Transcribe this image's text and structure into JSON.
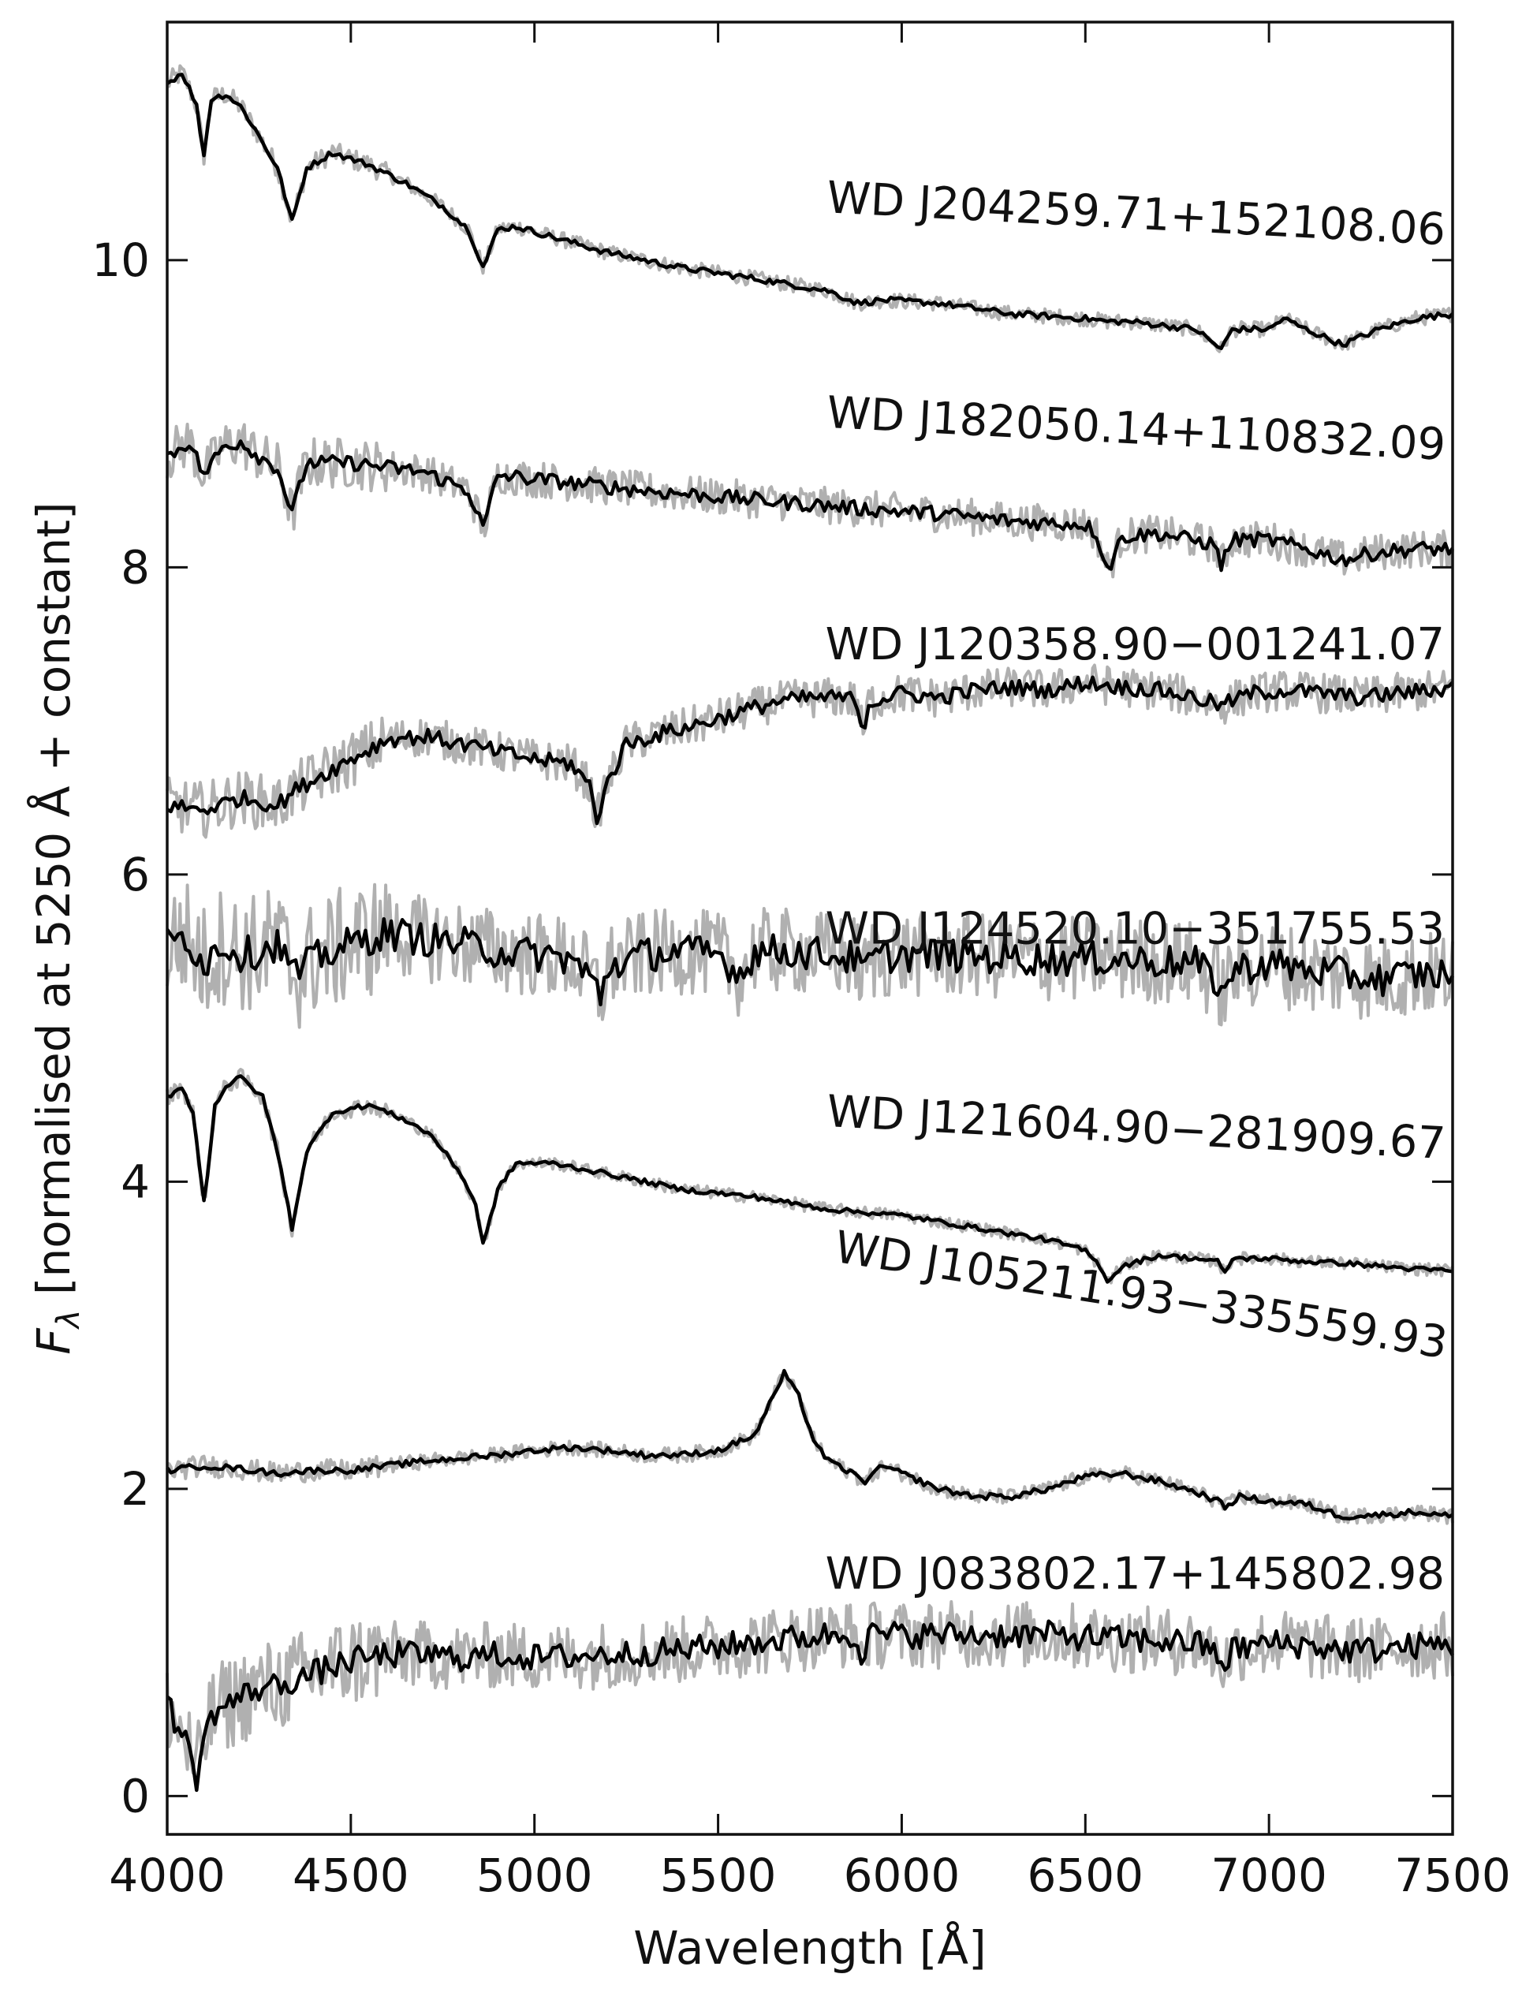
{
  "chart_data": {
    "type": "line",
    "title": "",
    "xlabel": "Wavelength [Å]",
    "ylabel_symbol": "F",
    "ylabel_subscript": "λ",
    "ylabel_rest": " [normalised at 5250 Å + constant]",
    "xlim": [
      4000,
      7500
    ],
    "ylim": [
      -0.25,
      11.55
    ],
    "xticks": [
      4000,
      4500,
      5000,
      5500,
      6000,
      6500,
      7000,
      7500
    ],
    "yticks": [
      0,
      2,
      4,
      6,
      8,
      10
    ],
    "grid": false,
    "colors": {
      "observed": "#b0b0b0",
      "smoothed": "#000000"
    },
    "series": [
      {
        "name": "WD J204259.71+152108.06",
        "label_rotation_deg": 3,
        "noise": 0.05,
        "x": [
          4000,
          4040,
          4060,
          4080,
          4100,
          4120,
          4160,
          4200,
          4240,
          4300,
          4340,
          4380,
          4450,
          4550,
          4650,
          4750,
          4820,
          4861,
          4900,
          4950,
          5050,
          5200,
          5400,
          5600,
          5800,
          5880,
          5950,
          6100,
          6300,
          6500,
          6562,
          6620,
          6800,
          6870,
          6900,
          7000,
          7040,
          7100,
          7200,
          7300,
          7400,
          7500
        ],
        "y": [
          11.15,
          11.22,
          11.12,
          11.0,
          10.68,
          11.05,
          11.08,
          11.0,
          10.85,
          10.6,
          10.25,
          10.6,
          10.7,
          10.62,
          10.5,
          10.35,
          10.2,
          9.95,
          10.2,
          10.22,
          10.15,
          10.05,
          9.95,
          9.88,
          9.8,
          9.72,
          9.74,
          9.72,
          9.65,
          9.62,
          9.6,
          9.6,
          9.55,
          9.42,
          9.55,
          9.55,
          9.62,
          9.55,
          9.45,
          9.55,
          9.62,
          9.65
        ]
      },
      {
        "name": "WD J182050.14+110832.09",
        "label_rotation_deg": 3,
        "noise": 0.12,
        "x": [
          4000,
          4060,
          4100,
          4150,
          4200,
          4250,
          4300,
          4340,
          4380,
          4500,
          4700,
          4820,
          4861,
          4900,
          5100,
          5300,
          5500,
          5700,
          5900,
          6100,
          6300,
          6500,
          6530,
          6562,
          6600,
          6700,
          6850,
          6870,
          6900,
          7000,
          7100,
          7200,
          7300,
          7400,
          7500
        ],
        "y": [
          8.72,
          8.82,
          8.6,
          8.78,
          8.82,
          8.72,
          8.65,
          8.35,
          8.68,
          8.68,
          8.62,
          8.5,
          8.25,
          8.6,
          8.55,
          8.5,
          8.46,
          8.42,
          8.38,
          8.35,
          8.3,
          8.28,
          8.22,
          7.98,
          8.2,
          8.22,
          8.15,
          8.02,
          8.18,
          8.18,
          8.12,
          8.05,
          8.1,
          8.12,
          8.12
        ]
      },
      {
        "name": "WD J120358.90−001241.07",
        "label_rotation_deg": 0,
        "noise": 0.13,
        "x": [
          4000,
          4100,
          4200,
          4300,
          4350,
          4400,
          4500,
          4600,
          4700,
          4800,
          4900,
          5000,
          5100,
          5150,
          5170,
          5190,
          5250,
          5350,
          5450,
          5550,
          5650,
          5750,
          5850,
          5880,
          5895,
          5910,
          6000,
          6100,
          6200,
          6300,
          6400,
          6500,
          6600,
          6700,
          6800,
          6870,
          6950,
          7050,
          7150,
          7250,
          7350,
          7450,
          7500
        ],
        "y": [
          6.45,
          6.42,
          6.5,
          6.45,
          6.55,
          6.62,
          6.75,
          6.88,
          6.9,
          6.85,
          6.8,
          6.75,
          6.72,
          6.58,
          6.35,
          6.55,
          6.85,
          6.92,
          6.98,
          7.05,
          7.12,
          7.15,
          7.15,
          7.12,
          6.9,
          7.12,
          7.18,
          7.15,
          7.2,
          7.22,
          7.2,
          7.25,
          7.22,
          7.2,
          7.15,
          7.1,
          7.18,
          7.2,
          7.18,
          7.15,
          7.18,
          7.2,
          7.22
        ]
      },
      {
        "name": "WD J124520.10−351755.53",
        "label_rotation_deg": 0,
        "noise": 0.28,
        "x": [
          4000,
          4050,
          4100,
          4150,
          4200,
          4250,
          4300,
          4350,
          4400,
          4500,
          4600,
          4700,
          4800,
          4900,
          5000,
          5100,
          5160,
          5180,
          5200,
          5300,
          5400,
          5500,
          5560,
          5580,
          5600,
          5700,
          5800,
          5880,
          5895,
          5910,
          6000,
          6200,
          6400,
          6600,
          6800,
          6860,
          6880,
          6900,
          7000,
          7100,
          7200,
          7300,
          7400,
          7500
        ],
        "y": [
          5.55,
          5.6,
          5.42,
          5.55,
          5.48,
          5.5,
          5.55,
          5.35,
          5.45,
          5.55,
          5.62,
          5.58,
          5.55,
          5.5,
          5.48,
          5.45,
          5.3,
          5.2,
          5.4,
          5.48,
          5.5,
          5.48,
          5.35,
          5.42,
          5.5,
          5.5,
          5.48,
          5.45,
          5.3,
          5.45,
          5.48,
          5.47,
          5.45,
          5.45,
          5.42,
          5.3,
          5.22,
          5.38,
          5.42,
          5.38,
          5.35,
          5.32,
          5.35,
          5.35
        ]
      },
      {
        "name": "WD J121604.90−281909.67",
        "label_rotation_deg": 3,
        "noise": 0.04,
        "x": [
          4000,
          4040,
          4070,
          4101,
          4130,
          4160,
          4200,
          4260,
          4300,
          4340,
          4380,
          4450,
          4550,
          4650,
          4720,
          4800,
          4840,
          4861,
          4900,
          4950,
          5050,
          5200,
          5400,
          5600,
          5800,
          6000,
          6200,
          6400,
          6500,
          6540,
          6562,
          6600,
          6700,
          6800,
          6860,
          6880,
          6900,
          7000,
          7100,
          7200,
          7300,
          7400,
          7500
        ],
        "y": [
          4.55,
          4.62,
          4.45,
          3.85,
          4.5,
          4.62,
          4.68,
          4.55,
          4.2,
          3.7,
          4.2,
          4.45,
          4.5,
          4.4,
          4.3,
          4.05,
          3.85,
          3.58,
          3.95,
          4.12,
          4.12,
          4.05,
          3.95,
          3.9,
          3.82,
          3.78,
          3.7,
          3.62,
          3.55,
          3.45,
          3.35,
          3.45,
          3.52,
          3.5,
          3.48,
          3.4,
          3.5,
          3.5,
          3.48,
          3.47,
          3.45,
          3.43,
          3.42
        ]
      },
      {
        "name": "WD J105211.93−335559.93",
        "label_rotation_deg": 9,
        "noise": 0.05,
        "x": [
          4000,
          4100,
          4200,
          4300,
          4400,
          4500,
          4600,
          4700,
          4800,
          4900,
          5000,
          5100,
          5200,
          5300,
          5400,
          5500,
          5600,
          5640,
          5680,
          5720,
          5760,
          5800,
          5850,
          5900,
          5950,
          6000,
          6100,
          6200,
          6300,
          6400,
          6500,
          6600,
          6700,
          6800,
          6860,
          6880,
          6920,
          7000,
          7100,
          7200,
          7300,
          7400,
          7500
        ],
        "y": [
          2.12,
          2.15,
          2.13,
          2.1,
          2.12,
          2.12,
          2.15,
          2.18,
          2.2,
          2.22,
          2.25,
          2.27,
          2.25,
          2.22,
          2.22,
          2.25,
          2.35,
          2.55,
          2.75,
          2.6,
          2.32,
          2.18,
          2.12,
          2.05,
          2.15,
          2.1,
          2.0,
          1.95,
          1.95,
          2.0,
          2.08,
          2.1,
          2.05,
          1.98,
          1.92,
          1.88,
          1.95,
          1.92,
          1.9,
          1.82,
          1.83,
          1.85,
          1.82
        ]
      },
      {
        "name": "WD J083802.17+145802.98",
        "label_rotation_deg": 0,
        "noise": 0.22,
        "x": [
          4000,
          4030,
          4060,
          4080,
          4100,
          4130,
          4180,
          4250,
          4300,
          4400,
          4500,
          4600,
          4700,
          4800,
          4900,
          5000,
          5200,
          5400,
          5600,
          5800,
          5880,
          5895,
          5910,
          6000,
          6200,
          6400,
          6600,
          6800,
          6860,
          6880,
          6900,
          7000,
          7100,
          7200,
          7300,
          7400,
          7500
        ],
        "y": [
          0.6,
          0.45,
          0.3,
          0.12,
          0.38,
          0.55,
          0.62,
          0.7,
          0.72,
          0.8,
          0.88,
          0.92,
          0.92,
          0.9,
          0.92,
          0.9,
          0.92,
          0.95,
          1.0,
          1.05,
          1.05,
          0.88,
          1.05,
          1.05,
          1.05,
          1.05,
          1.02,
          1.0,
          0.92,
          0.85,
          0.95,
          1.0,
          0.98,
          0.95,
          0.95,
          0.98,
          0.98
        ]
      }
    ]
  }
}
